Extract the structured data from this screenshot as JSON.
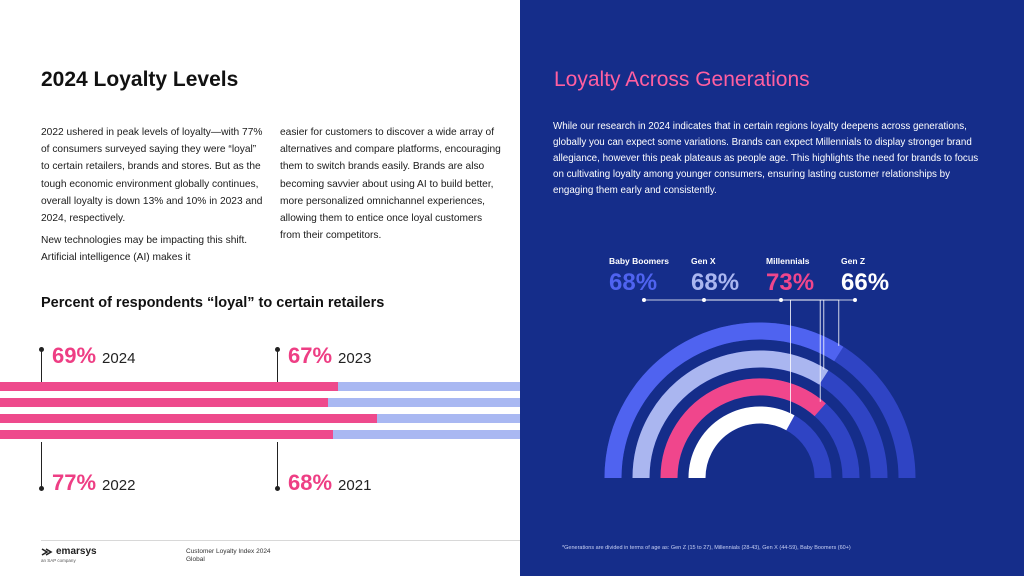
{
  "left": {
    "title": "2024 Loyalty Levels",
    "col1": {
      "p1": "2022 ushered in peak levels of loyalty—with 77% of consumers surveyed saying they were “loyal” to certain retailers, brands and stores. But as the tough economic environment globally continues, overall loyalty is down 13% and 10% in 2023 and 2024, respectively.",
      "p2": "New technologies may be impacting this shift. Artificial intelligence (AI) makes it"
    },
    "col2": {
      "p1": "easier for customers to discover a wide array of alternatives and compare platforms, encouraging them to switch brands easily. Brands are also becoming savvier about using AI to build better, more personalized omnichannel experiences, allowing them to entice once loyal customers from their competitors."
    },
    "subtitle": "Percent of respondents “loyal” to certain retailers",
    "stats": [
      {
        "pct": "69%",
        "year": "2024",
        "value": 0.69
      },
      {
        "pct": "67%",
        "year": "2023",
        "value": 0.67
      },
      {
        "pct": "77%",
        "year": "2022",
        "value": 0.77
      },
      {
        "pct": "68%",
        "year": "2021",
        "value": 0.68
      }
    ],
    "footer": {
      "logo": "emarsys",
      "logo_sub": "an SAP company",
      "source_line1": "Customer Loyalty Index 2024",
      "source_line2": "Global"
    }
  },
  "right": {
    "title": "Loyalty Across Generations",
    "paragraph": "While our research in 2024 indicates that in certain regions loyalty deepens across generations, globally you can expect some variations. Brands can expect Millennials to display stronger brand allegiance, however this peak plateaus as people age. This highlights the need for brands to focus on cultivating loyalty among younger consumers, ensuring lasting customer relationships by engaging them early and consistently.",
    "generations": [
      {
        "name": "Baby Boomers",
        "pct": "68%",
        "value": 0.68
      },
      {
        "name": "Gen X",
        "pct": "68%",
        "value": 0.68
      },
      {
        "name": "Millennials",
        "pct": "73%",
        "value": 0.73
      },
      {
        "name": "Gen Z",
        "pct": "66%",
        "value": 0.66
      }
    ],
    "footnote": "*Generations are divided in terms of age as: Gen Z (15 to 27), Millennials (28-43), Gen X (44-59), Baby Boomers (60+)"
  },
  "colors": {
    "left_bg": "#ffffff",
    "right_bg": "#152d8a",
    "pink": "#ee3e84",
    "pink_title": "#ff5fa0",
    "lavender": "#a9b8f2",
    "boomers": "#4f63f0",
    "genx": "#aab6f0",
    "millennials": "#f0468c",
    "genz": "#ffffff",
    "arc_track": "#2f44c4"
  }
}
